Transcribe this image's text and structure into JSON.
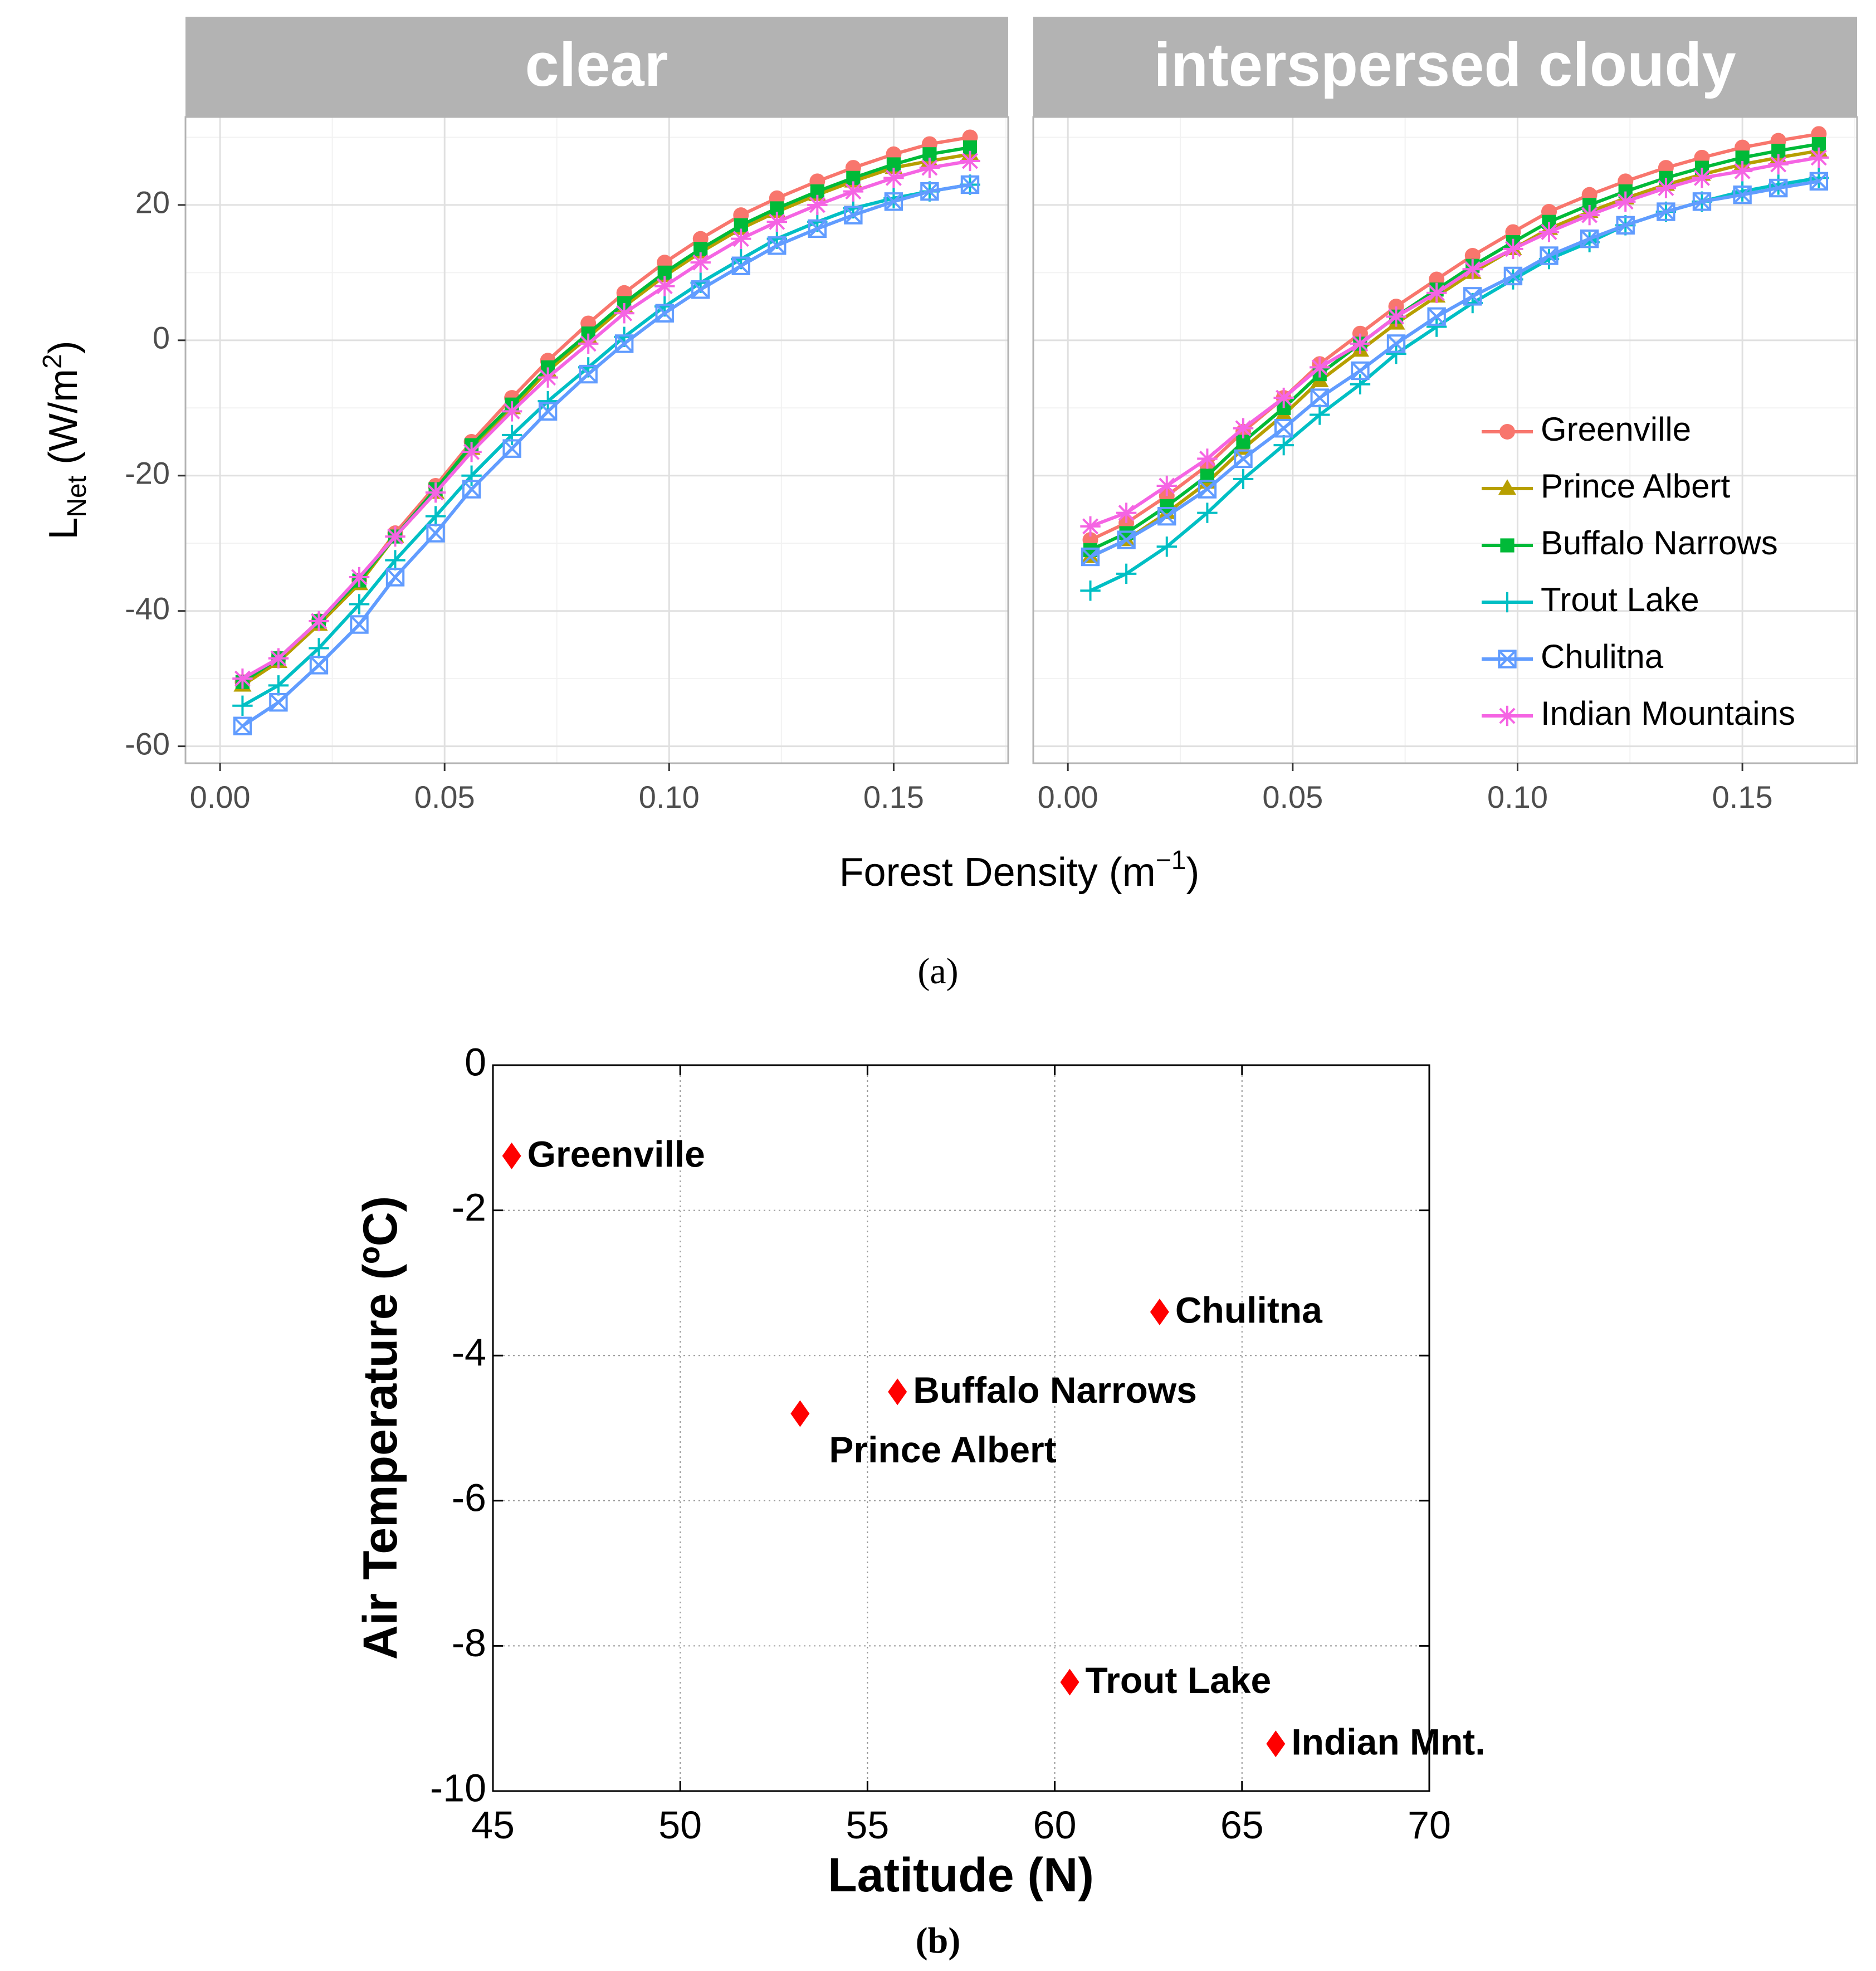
{
  "chart_data": [
    {
      "type": "line",
      "panel_label": "(a)",
      "facets": [
        "clear",
        "interspersed cloudy"
      ],
      "xlabel": "Forest Density",
      "xlabel_unit": "(m−1)",
      "xlabel_unit_base": "(m",
      "xlabel_unit_sup": "−1",
      "xlabel_unit_close": ")",
      "ylabel": "L",
      "ylabel_sub": "Net",
      "ylabel_unit": "(W/m²)",
      "ylabel_unit_base": " (W/m",
      "ylabel_unit_sup": "2",
      "ylabel_unit_close": ")",
      "xlim": [
        -0.0077,
        0.1755
      ],
      "ylim": [
        -62.5,
        33.0
      ],
      "xticks": [
        0.0,
        0.05,
        0.1,
        0.15
      ],
      "xtick_labels": [
        "0.00",
        "0.05",
        "0.10",
        "0.15"
      ],
      "yticks": [
        -60,
        -40,
        -20,
        0,
        20
      ],
      "ytick_labels": [
        "-60",
        "-40",
        "-20",
        "0",
        "20"
      ],
      "x": [
        0.005,
        0.013,
        0.022,
        0.031,
        0.039,
        0.048,
        0.056,
        0.065,
        0.073,
        0.082,
        0.09,
        0.099,
        0.107,
        0.116,
        0.124,
        0.133,
        0.141,
        0.15,
        0.158,
        0.167
      ],
      "legend": {
        "position": "bottom-right of right panel",
        "entries": [
          "Greenville",
          "Prince Albert",
          "Buffalo Narrows",
          "Trout Lake",
          "Chulitna",
          "Indian Mountains"
        ]
      },
      "series": [
        {
          "name": "Greenville",
          "color": "#F8766D",
          "marker": "circle",
          "clear": [
            -50.5,
            -47.0,
            -41.5,
            -35.5,
            -28.5,
            -21.5,
            -15.0,
            -8.5,
            -3.0,
            2.5,
            7.0,
            11.5,
            15.0,
            18.5,
            21.0,
            23.5,
            25.5,
            27.5,
            29.0,
            30.0
          ],
          "cloudy": [
            -29.5,
            -27.0,
            -23.0,
            -18.5,
            -13.5,
            -8.5,
            -3.5,
            1.0,
            5.0,
            9.0,
            12.5,
            16.0,
            19.0,
            21.5,
            23.5,
            25.5,
            27.0,
            28.5,
            29.5,
            30.5
          ]
        },
        {
          "name": "Prince Albert",
          "color": "#B79F00",
          "marker": "triangle",
          "clear": [
            -51.0,
            -47.5,
            -42.0,
            -36.0,
            -29.0,
            -22.5,
            -16.0,
            -10.0,
            -4.5,
            0.5,
            5.0,
            9.5,
            13.0,
            16.5,
            19.0,
            21.5,
            23.5,
            25.5,
            26.5,
            27.5
          ],
          "cloudy": [
            -32.0,
            -29.5,
            -25.5,
            -21.0,
            -16.0,
            -11.0,
            -6.0,
            -1.5,
            2.5,
            6.5,
            10.0,
            13.5,
            16.5,
            19.0,
            21.0,
            23.0,
            24.5,
            26.0,
            27.0,
            28.0
          ]
        },
        {
          "name": "Buffalo Narrows",
          "color": "#00BA38",
          "marker": "square",
          "clear": [
            -50.5,
            -47.0,
            -41.5,
            -35.5,
            -29.0,
            -22.0,
            -15.5,
            -9.5,
            -4.0,
            1.0,
            5.5,
            10.0,
            13.5,
            17.0,
            19.5,
            22.0,
            24.0,
            26.0,
            27.5,
            28.5
          ],
          "cloudy": [
            -31.0,
            -28.5,
            -24.5,
            -20.0,
            -15.0,
            -10.0,
            -5.0,
            -0.5,
            3.5,
            7.5,
            11.0,
            14.5,
            17.5,
            20.0,
            22.0,
            24.0,
            25.5,
            27.0,
            28.0,
            29.0
          ]
        },
        {
          "name": "Trout Lake",
          "color": "#00BFC4",
          "marker": "plus",
          "clear": [
            -54.0,
            -51.0,
            -45.5,
            -39.0,
            -32.5,
            -26.0,
            -20.0,
            -14.0,
            -9.0,
            -4.0,
            0.5,
            5.0,
            8.5,
            12.0,
            15.0,
            17.5,
            19.5,
            21.0,
            22.0,
            23.0
          ],
          "cloudy": [
            -37.0,
            -34.5,
            -30.5,
            -25.5,
            -20.5,
            -15.5,
            -11.0,
            -6.5,
            -2.0,
            2.0,
            5.5,
            9.0,
            12.0,
            14.5,
            17.0,
            19.0,
            20.5,
            22.0,
            23.0,
            24.0
          ]
        },
        {
          "name": "Chulitna",
          "color": "#619CFF",
          "marker": "boxx",
          "clear": [
            -57.0,
            -53.5,
            -48.0,
            -42.0,
            -35.0,
            -28.5,
            -22.0,
            -16.0,
            -10.5,
            -5.0,
            -0.5,
            4.0,
            7.5,
            11.0,
            14.0,
            16.5,
            18.5,
            20.5,
            22.0,
            23.0
          ],
          "cloudy": [
            -32.0,
            -29.5,
            -26.0,
            -22.0,
            -17.5,
            -13.0,
            -8.5,
            -4.5,
            -0.5,
            3.5,
            6.5,
            9.5,
            12.5,
            15.0,
            17.0,
            19.0,
            20.5,
            21.5,
            22.5,
            23.5
          ]
        },
        {
          "name": "Indian Mountains",
          "color": "#F564E3",
          "marker": "asterisk",
          "clear": [
            -50.0,
            -47.0,
            -41.5,
            -35.0,
            -29.0,
            -22.5,
            -16.5,
            -10.5,
            -5.5,
            -0.5,
            4.0,
            8.0,
            11.5,
            15.0,
            17.5,
            20.0,
            22.0,
            24.0,
            25.5,
            26.5
          ],
          "cloudy": [
            -27.5,
            -25.5,
            -21.5,
            -17.5,
            -13.0,
            -8.5,
            -4.0,
            -0.5,
            3.5,
            7.0,
            10.5,
            13.5,
            16.0,
            18.5,
            20.5,
            22.5,
            24.0,
            25.0,
            26.0,
            27.0
          ]
        }
      ]
    },
    {
      "type": "scatter",
      "panel_label": "(b)",
      "xlabel": "Latitude (N)",
      "ylabel": "Air Temperature (ºC)",
      "xlim": [
        45,
        70
      ],
      "ylim": [
        -10,
        0
      ],
      "xticks": [
        45,
        50,
        55,
        60,
        65,
        70
      ],
      "yticks": [
        0,
        -2,
        -4,
        -6,
        -8,
        -10
      ],
      "xtick_labels": [
        "45",
        "50",
        "55",
        "60",
        "65",
        "70"
      ],
      "ytick_labels": [
        "0",
        "-2",
        "-4",
        "-6",
        "-8",
        "-10"
      ],
      "grid": "dotted",
      "marker_color": "#FF0000",
      "points": [
        {
          "label": "Greenville",
          "x": 45.5,
          "y": -1.25,
          "label_side": "right"
        },
        {
          "label": "Chulitna",
          "x": 62.8,
          "y": -3.4,
          "label_side": "right"
        },
        {
          "label": "Buffalo Narrows",
          "x": 55.8,
          "y": -4.5,
          "label_side": "right"
        },
        {
          "label": "Prince Albert",
          "x": 53.2,
          "y": -4.8,
          "label_side": "below-right"
        },
        {
          "label": "Trout Lake",
          "x": 60.4,
          "y": -8.5,
          "label_side": "right"
        },
        {
          "label": "Indian Mnt.",
          "x": 65.9,
          "y": -9.35,
          "label_side": "right"
        }
      ]
    }
  ]
}
